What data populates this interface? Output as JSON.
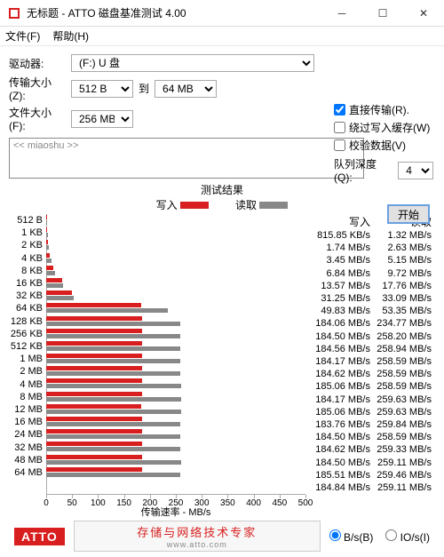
{
  "window": {
    "title": "无标题 - ATTO 磁盘基准测试 4.00",
    "menu": {
      "file": "文件(F)",
      "help": "帮助(H)"
    }
  },
  "form": {
    "drive_label": "驱动器:",
    "drive_value": "(F:) U 盘",
    "xfer_label": "传输大小(Z):",
    "xfer_from": "512 B",
    "xfer_to_lbl": "到",
    "xfer_to": "64 MB",
    "file_label": "文件大小(F):",
    "file_value": "256 MB",
    "direct": "直接传输(R).",
    "bypass": "绕过写入缓存(W)",
    "verify": "校验数据(V)",
    "queue_label": "队列深度(Q):",
    "queue_value": "4",
    "textarea": "<< miaoshu >>",
    "start": "开始"
  },
  "results": {
    "title": "测试结果",
    "write_lbl": "写入",
    "read_lbl": "读取"
  },
  "chart": {
    "xlabel": "传输速率 - MB/s",
    "xmax": 500,
    "xticks": [
      0,
      50,
      100,
      150,
      200,
      250,
      300,
      350,
      400,
      450,
      500
    ],
    "write_color": "#d81e1e",
    "read_color": "#888888",
    "sizes": [
      "512 B",
      "1 KB",
      "2 KB",
      "4 KB",
      "8 KB",
      "16 KB",
      "32 KB",
      "64 KB",
      "128 KB",
      "256 KB",
      "512 KB",
      "1 MB",
      "2 MB",
      "4 MB",
      "8 MB",
      "12 MB",
      "16 MB",
      "24 MB",
      "32 MB",
      "48 MB",
      "64 MB"
    ],
    "write_vals": [
      0.82,
      1.74,
      3.45,
      6.84,
      13.57,
      31.25,
      49.83,
      184.06,
      184.5,
      184.56,
      184.17,
      184.62,
      185.06,
      184.17,
      185.06,
      183.76,
      184.5,
      184.62,
      184.5,
      185.51,
      184.84
    ],
    "read_vals": [
      1.32,
      2.63,
      5.15,
      9.72,
      17.76,
      33.09,
      53.35,
      234.77,
      258.2,
      258.94,
      258.59,
      258.59,
      258.59,
      259.63,
      259.63,
      259.84,
      258.59,
      259.33,
      259.11,
      259.46,
      259.11
    ]
  },
  "stats": {
    "write_hdr": "写入",
    "read_hdr": "读取",
    "rows": [
      {
        "w": "815.85 KB/s",
        "r": "1.32 MB/s"
      },
      {
        "w": "1.74 MB/s",
        "r": "2.63 MB/s"
      },
      {
        "w": "3.45 MB/s",
        "r": "5.15 MB/s"
      },
      {
        "w": "6.84 MB/s",
        "r": "9.72 MB/s"
      },
      {
        "w": "13.57 MB/s",
        "r": "17.76 MB/s"
      },
      {
        "w": "31.25 MB/s",
        "r": "33.09 MB/s"
      },
      {
        "w": "49.83 MB/s",
        "r": "53.35 MB/s"
      },
      {
        "w": "184.06 MB/s",
        "r": "234.77 MB/s"
      },
      {
        "w": "184.50 MB/s",
        "r": "258.20 MB/s"
      },
      {
        "w": "184.56 MB/s",
        "r": "258.94 MB/s"
      },
      {
        "w": "184.17 MB/s",
        "r": "258.59 MB/s"
      },
      {
        "w": "184.62 MB/s",
        "r": "258.59 MB/s"
      },
      {
        "w": "185.06 MB/s",
        "r": "258.59 MB/s"
      },
      {
        "w": "184.17 MB/s",
        "r": "259.63 MB/s"
      },
      {
        "w": "185.06 MB/s",
        "r": "259.63 MB/s"
      },
      {
        "w": "183.76 MB/s",
        "r": "259.84 MB/s"
      },
      {
        "w": "184.50 MB/s",
        "r": "258.59 MB/s"
      },
      {
        "w": "184.62 MB/s",
        "r": "259.33 MB/s"
      },
      {
        "w": "184.50 MB/s",
        "r": "259.11 MB/s"
      },
      {
        "w": "185.51 MB/s",
        "r": "259.46 MB/s"
      },
      {
        "w": "184.84 MB/s",
        "r": "259.11 MB/s"
      }
    ]
  },
  "footer": {
    "logo": "ATTO",
    "tagline": "存储与网络技术专家",
    "url": "www.atto.com",
    "radio_bs": "B/s(B)",
    "radio_ios": "IO/s(I)"
  }
}
